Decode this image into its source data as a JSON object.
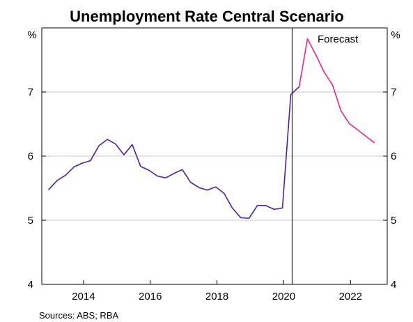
{
  "chart_data": {
    "type": "line",
    "title": "Unemployment Rate Central Scenario",
    "y_unit_left": "%",
    "y_unit_right": "%",
    "ylim": [
      4,
      8
    ],
    "y_ticks": [
      4,
      5,
      6,
      7
    ],
    "y_tick_labels": [
      "4",
      "5",
      "6",
      "7"
    ],
    "x_range": [
      2012.75,
      2023.1
    ],
    "x_ticks": [
      2014,
      2016,
      2018,
      2020,
      2022
    ],
    "x_tick_labels": [
      "2014",
      "2016",
      "2018",
      "2020",
      "2022"
    ],
    "grid": "horizontal",
    "forecast_divider_x": 2020.25,
    "annotation": "Forecast",
    "source": "Sources: ABS; RBA",
    "series": [
      {
        "color": "#4B1FA8",
        "points": [
          [
            2012.96,
            5.48
          ],
          [
            2013.21,
            5.62
          ],
          [
            2013.46,
            5.7
          ],
          [
            2013.71,
            5.83
          ],
          [
            2013.96,
            5.89
          ],
          [
            2014.21,
            5.93
          ],
          [
            2014.46,
            6.16
          ],
          [
            2014.71,
            6.26
          ],
          [
            2014.96,
            6.19
          ],
          [
            2015.21,
            6.02
          ],
          [
            2015.46,
            6.18
          ],
          [
            2015.71,
            5.84
          ],
          [
            2015.96,
            5.78
          ],
          [
            2016.21,
            5.69
          ],
          [
            2016.46,
            5.66
          ],
          [
            2016.71,
            5.73
          ],
          [
            2016.96,
            5.79
          ],
          [
            2017.21,
            5.59
          ],
          [
            2017.46,
            5.51
          ],
          [
            2017.71,
            5.47
          ],
          [
            2017.96,
            5.52
          ],
          [
            2018.21,
            5.42
          ],
          [
            2018.46,
            5.19
          ],
          [
            2018.71,
            5.04
          ],
          [
            2018.96,
            5.03
          ],
          [
            2019.21,
            5.23
          ],
          [
            2019.46,
            5.23
          ],
          [
            2019.71,
            5.17
          ],
          [
            2019.96,
            5.19
          ],
          [
            2020.21,
            6.96
          ],
          [
            2020.46,
            7.08
          ]
        ]
      },
      {
        "color": "#E0288F",
        "points": [
          [
            2020.46,
            7.08
          ],
          [
            2020.71,
            7.83
          ],
          [
            2020.96,
            7.58
          ],
          [
            2021.21,
            7.31
          ],
          [
            2021.46,
            7.11
          ],
          [
            2021.71,
            6.71
          ],
          [
            2021.96,
            6.51
          ],
          [
            2022.21,
            6.41
          ],
          [
            2022.46,
            6.31
          ],
          [
            2022.71,
            6.21
          ]
        ]
      }
    ]
  }
}
